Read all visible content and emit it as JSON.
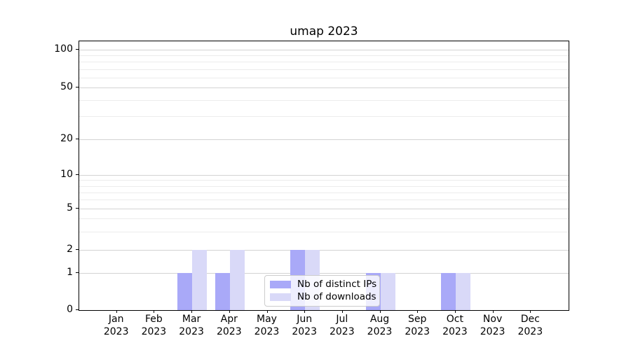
{
  "title": "umap 2023",
  "chart_data": {
    "type": "bar",
    "title": "umap 2023",
    "xlabel": "",
    "ylabel": "",
    "yscale": "symlog",
    "ylim": [
      0,
      117
    ],
    "yticks": [
      0,
      1,
      2,
      5,
      10,
      20,
      50,
      100
    ],
    "grid": "horizontal-major-and-log-minor",
    "categories": [
      "Jan 2023",
      "Feb 2023",
      "Mar 2023",
      "Apr 2023",
      "May 2023",
      "Jun 2023",
      "Jul 2023",
      "Aug 2023",
      "Sep 2023",
      "Oct 2023",
      "Nov 2023",
      "Dec 2023"
    ],
    "series": [
      {
        "name": "Nb of distinct IPs",
        "color": "#a9a9f8",
        "values": [
          0,
          0,
          1,
          1,
          0,
          2,
          0,
          1,
          0,
          1,
          0,
          0
        ]
      },
      {
        "name": "Nb of downloads",
        "color": "#d9d9f8",
        "values": [
          0,
          0,
          2,
          2,
          0,
          2,
          0,
          1,
          0,
          1,
          0,
          0
        ]
      }
    ],
    "legend_position": "lower-center",
    "colors": {
      "major_grid": "#d3d3d3",
      "minor_grid": "#ececec",
      "spine": "#000000",
      "legend_border": "#cccccc"
    }
  }
}
